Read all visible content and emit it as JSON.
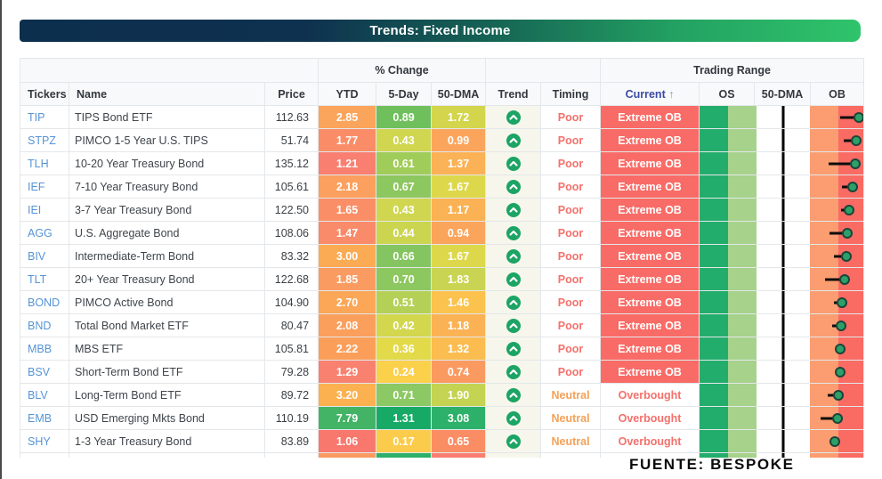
{
  "title": "Trends: Fixed Income",
  "source": "FUENTE: BESPOKE",
  "table": {
    "group_headers": {
      "pct_change": "% Change",
      "trading_range": "Trading Range"
    },
    "columns": {
      "tickers": "Tickers",
      "name": "Name",
      "price": "Price",
      "ytd": "YTD",
      "five_day": "5-Day",
      "dma50": "50-DMA",
      "trend": "Trend",
      "timing": "Timing",
      "current": "Current",
      "sort_arrow": "↑",
      "os": "OS",
      "dma50_range": "50-DMA",
      "ob": "OB"
    },
    "gauge": {
      "bands": [
        {
          "name": "os-dark-green",
          "from": 0,
          "to": 17.3,
          "color": "#23ad6c"
        },
        {
          "name": "os-light-green",
          "from": 17.3,
          "to": 35,
          "color": "#a6d28b"
        },
        {
          "name": "mid-white",
          "from": 35,
          "to": 67.5,
          "color": "#ffffff"
        },
        {
          "name": "ob-orange",
          "from": 67.5,
          "to": 85,
          "color": "#fb9d70"
        },
        {
          "name": "ob-red",
          "from": 85,
          "to": 100,
          "color": "#f96b63"
        }
      ],
      "dma_line_pct": 51
    },
    "rows": [
      {
        "ticker": "TIP",
        "name": "TIPS Bond ETF",
        "price": "112.63",
        "ytd": {
          "v": "2.85",
          "bg": "#fba45b"
        },
        "d5": {
          "v": "0.89",
          "bg": "#6fc05c"
        },
        "dma": {
          "v": "1.72",
          "bg": "#d3d54d"
        },
        "trend": "up",
        "timing": "Poor",
        "timing_style": "poor",
        "current": "Extreme OB",
        "current_style": "extreme",
        "dot": 97.5,
        "tail": 86
      },
      {
        "ticker": "STPZ",
        "name": "PIMCO 1-5 Year U.S. TIPS",
        "price": "51.74",
        "ytd": {
          "v": "1.77",
          "bg": "#fa8d68"
        },
        "d5": {
          "v": "0.43",
          "bg": "#d0d64f"
        },
        "dma": {
          "v": "0.99",
          "bg": "#fba55c"
        },
        "trend": "up",
        "timing": "Poor",
        "timing_style": "poor",
        "current": "Extreme OB",
        "current_style": "extreme",
        "dot": 95.7,
        "tail": 88
      },
      {
        "ticker": "TLH",
        "name": "10-20 Year Treasury Bond",
        "price": "135.12",
        "ytd": {
          "v": "1.21",
          "bg": "#f97f71"
        },
        "d5": {
          "v": "0.61",
          "bg": "#a0cc59"
        },
        "dma": {
          "v": "1.37",
          "bg": "#fbb155"
        },
        "trend": "up",
        "timing": "Poor",
        "timing_style": "poor",
        "current": "Extreme OB",
        "current_style": "extreme",
        "dot": 95,
        "tail": 79
      },
      {
        "ticker": "IEF",
        "name": "7-10 Year Treasury Bond",
        "price": "105.61",
        "ytd": {
          "v": "2.18",
          "bg": "#fba05e"
        },
        "d5": {
          "v": "0.67",
          "bg": "#8dc75f"
        },
        "dma": {
          "v": "1.67",
          "bg": "#ddd84b"
        },
        "trend": "up",
        "timing": "Poor",
        "timing_style": "poor",
        "current": "Extreme OB",
        "current_style": "extreme",
        "dot": 93.5,
        "tail": 87
      },
      {
        "ticker": "IEI",
        "name": "3-7 Year Treasury Bond",
        "price": "122.50",
        "ytd": {
          "v": "1.65",
          "bg": "#fa8f67"
        },
        "d5": {
          "v": "0.43",
          "bg": "#d0d64f"
        },
        "dma": {
          "v": "1.17",
          "bg": "#fbb254"
        },
        "trend": "up",
        "timing": "Poor",
        "timing_style": "poor",
        "current": "Extreme OB",
        "current_style": "extreme",
        "dot": 91,
        "tail": 86.5
      },
      {
        "ticker": "AGG",
        "name": "U.S. Aggregate Bond",
        "price": "108.06",
        "ytd": {
          "v": "1.47",
          "bg": "#f98a6a"
        },
        "d5": {
          "v": "0.44",
          "bg": "#cbd550"
        },
        "dma": {
          "v": "0.94",
          "bg": "#fba45c"
        },
        "trend": "up",
        "timing": "Poor",
        "timing_style": "poor",
        "current": "Extreme OB",
        "current_style": "extreme",
        "dot": 90.3,
        "tail": 79.5
      },
      {
        "ticker": "BIV",
        "name": "Intermediate-Term Bond",
        "price": "83.32",
        "ytd": {
          "v": "3.00",
          "bg": "#fbab54"
        },
        "d5": {
          "v": "0.66",
          "bg": "#85c561"
        },
        "dma": {
          "v": "1.67",
          "bg": "#ddd84b"
        },
        "trend": "up",
        "timing": "Poor",
        "timing_style": "poor",
        "current": "Extreme OB",
        "current_style": "extreme",
        "dot": 89.5,
        "tail": 82
      },
      {
        "ticker": "TLT",
        "name": "20+ Year Treasury Bond",
        "price": "122.68",
        "ytd": {
          "v": "1.85",
          "bg": "#fa9b61"
        },
        "d5": {
          "v": "0.70",
          "bg": "#8cc75f"
        },
        "dma": {
          "v": "1.83",
          "bg": "#c9d452"
        },
        "trend": "up",
        "timing": "Poor",
        "timing_style": "poor",
        "current": "Extreme OB",
        "current_style": "extreme",
        "dot": 88.8,
        "tail": 76.6
      },
      {
        "ticker": "BOND",
        "name": "PIMCO Active Bond",
        "price": "104.90",
        "ytd": {
          "v": "2.70",
          "bg": "#fba757"
        },
        "d5": {
          "v": "0.51",
          "bg": "#b4d056"
        },
        "dma": {
          "v": "1.46",
          "bg": "#fbc24e"
        },
        "trend": "up",
        "timing": "Poor",
        "timing_style": "poor",
        "current": "Extreme OB",
        "current_style": "extreme",
        "dot": 87,
        "tail": 82
      },
      {
        "ticker": "BND",
        "name": "Total Bond Market ETF",
        "price": "80.47",
        "ytd": {
          "v": "2.08",
          "bg": "#fb9f5d"
        },
        "d5": {
          "v": "0.42",
          "bg": "#d2d74e"
        },
        "dma": {
          "v": "1.18",
          "bg": "#fbb254"
        },
        "trend": "up",
        "timing": "Poor",
        "timing_style": "poor",
        "current": "Extreme OB",
        "current_style": "extreme",
        "dot": 86.5,
        "tail": 81
      },
      {
        "ticker": "MBB",
        "name": "MBS ETF",
        "price": "105.81",
        "ytd": {
          "v": "2.22",
          "bg": "#fb9e59"
        },
        "d5": {
          "v": "0.36",
          "bg": "#e3da4a"
        },
        "dma": {
          "v": "1.32",
          "bg": "#fbbc50"
        },
        "trend": "up",
        "timing": "Poor",
        "timing_style": "poor",
        "current": "Extreme OB",
        "current_style": "extreme",
        "dot": 86,
        "tail": null
      },
      {
        "ticker": "BSV",
        "name": "Short-Term Bond ETF",
        "price": "79.28",
        "ytd": {
          "v": "1.29",
          "bg": "#f98170"
        },
        "d5": {
          "v": "0.24",
          "bg": "#fbd04b"
        },
        "dma": {
          "v": "0.74",
          "bg": "#fa9a61"
        },
        "trend": "up",
        "timing": "Poor",
        "timing_style": "poor",
        "current": "Extreme OB",
        "current_style": "extreme",
        "dot": 85.6,
        "tail": 83
      },
      {
        "ticker": "BLV",
        "name": "Long-Term Bond ETF",
        "price": "89.72",
        "ytd": {
          "v": "3.20",
          "bg": "#fbb150"
        },
        "d5": {
          "v": "0.71",
          "bg": "#8cc863"
        },
        "dma": {
          "v": "1.90",
          "bg": "#c4d352"
        },
        "trend": "up",
        "timing": "Neutral",
        "timing_style": "neutral",
        "current": "Overbought",
        "current_style": "overbought",
        "dot": 85,
        "tail": 78
      },
      {
        "ticker": "EMB",
        "name": "USD Emerging Mkts Bond",
        "price": "110.19",
        "ytd": {
          "v": "7.79",
          "bg": "#43b366"
        },
        "d5": {
          "v": "1.31",
          "bg": "#17aa67"
        },
        "dma": {
          "v": "3.08",
          "bg": "#2db069"
        },
        "trend": "up",
        "timing": "Neutral",
        "timing_style": "neutral",
        "current": "Overbought",
        "current_style": "overbought",
        "dot": 84.3,
        "tail": 74
      },
      {
        "ticker": "SHY",
        "name": "1-3 Year Treasury Bond",
        "price": "83.89",
        "ytd": {
          "v": "1.06",
          "bg": "#f9786e"
        },
        "d5": {
          "v": "0.17",
          "bg": "#fbcb4c"
        },
        "dma": {
          "v": "0.65",
          "bg": "#fa8d64"
        },
        "trend": "up",
        "timing": "Neutral",
        "timing_style": "neutral",
        "current": "Overbought",
        "current_style": "overbought",
        "dot": 82.7,
        "tail": null
      }
    ],
    "partial_row": {
      "ytd_bg": "#fa9a61",
      "d5_bg": "#2db069",
      "dma_bg": "#f97e72"
    }
  },
  "colors": {
    "title_gradient_left": "#0d2f4e",
    "title_gradient_right": "#2fc46b",
    "ticker_link": "#5694d6",
    "timing_poor": "#f4716c",
    "timing_neutral": "#f5a156",
    "extreme_ob_bg": "#f96b66",
    "overbought_text": "#f4716c",
    "trend_icon": "#1ca465",
    "sort_header": "#3b4ba5",
    "dot_fill": "#2ca068"
  }
}
